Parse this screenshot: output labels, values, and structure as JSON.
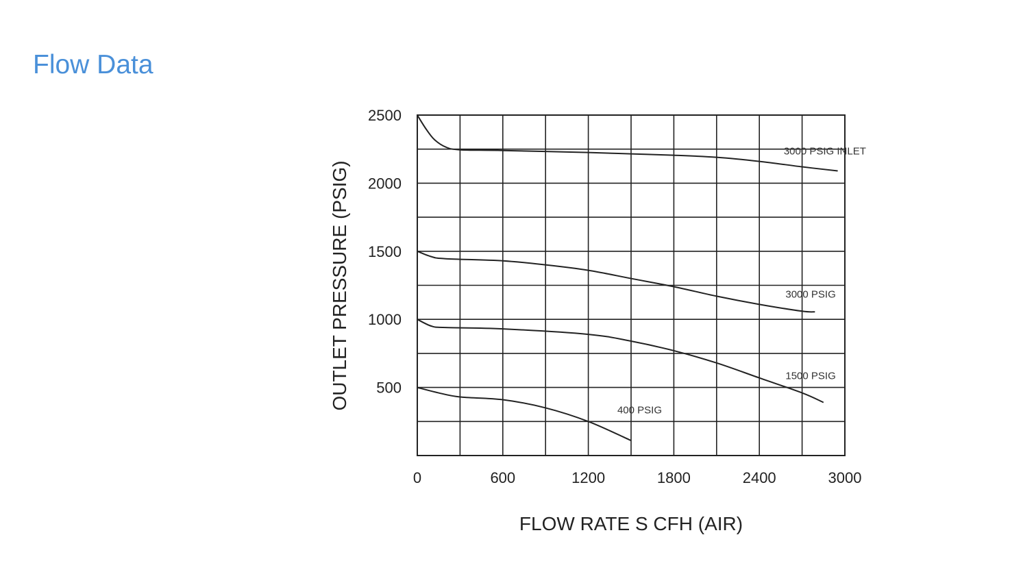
{
  "page": {
    "title": "Flow Data",
    "title_color": "#4a90d9"
  },
  "chart_data": {
    "type": "line",
    "title": "",
    "xlabel": "FLOW  RATE S CFH (AIR)",
    "ylabel": "OUTLET  PRESSURE (PSIG)",
    "xlim": [
      0,
      3000
    ],
    "ylim": [
      0,
      2500
    ],
    "x_gridlines": [
      0,
      300,
      600,
      900,
      1200,
      1500,
      1800,
      2100,
      2400,
      2700,
      3000
    ],
    "y_gridlines": [
      0,
      250,
      500,
      750,
      1000,
      1250,
      1500,
      1750,
      2000,
      2250,
      2500
    ],
    "x_ticks": [
      {
        "value": 0,
        "label": "0"
      },
      {
        "value": 600,
        "label": "600"
      },
      {
        "value": 1200,
        "label": "1200"
      },
      {
        "value": 1800,
        "label": "1800"
      },
      {
        "value": 2400,
        "label": "2400"
      },
      {
        "value": 3000,
        "label": "3000"
      }
    ],
    "y_ticks": [
      {
        "value": 500,
        "label": "500"
      },
      {
        "value": 1000,
        "label": "1000"
      },
      {
        "value": 1500,
        "label": "1500"
      },
      {
        "value": 2000,
        "label": "2000"
      },
      {
        "value": 2500,
        "label": "2500"
      }
    ],
    "grid": true,
    "line_color": "#222222",
    "series": [
      {
        "name": "3000 PSIG INLET",
        "label_at": [
          2860,
          2210
        ],
        "points": [
          [
            0,
            2500
          ],
          [
            60,
            2400
          ],
          [
            120,
            2320
          ],
          [
            200,
            2265
          ],
          [
            300,
            2245
          ],
          [
            600,
            2240
          ],
          [
            1200,
            2225
          ],
          [
            1500,
            2215
          ],
          [
            1800,
            2205
          ],
          [
            2100,
            2190
          ],
          [
            2400,
            2160
          ],
          [
            2700,
            2120
          ],
          [
            2950,
            2090
          ]
        ]
      },
      {
        "name": "3000 PSIG",
        "label_at": [
          2760,
          1160
        ],
        "points": [
          [
            0,
            1500
          ],
          [
            100,
            1460
          ],
          [
            200,
            1445
          ],
          [
            600,
            1430
          ],
          [
            900,
            1400
          ],
          [
            1200,
            1360
          ],
          [
            1500,
            1300
          ],
          [
            1800,
            1240
          ],
          [
            2100,
            1170
          ],
          [
            2400,
            1110
          ],
          [
            2700,
            1060
          ],
          [
            2790,
            1055
          ]
        ]
      },
      {
        "name": "1500 PSIG",
        "label_at": [
          2760,
          560
        ],
        "points": [
          [
            0,
            1000
          ],
          [
            100,
            950
          ],
          [
            200,
            940
          ],
          [
            600,
            930
          ],
          [
            1200,
            890
          ],
          [
            1500,
            840
          ],
          [
            1800,
            770
          ],
          [
            2100,
            680
          ],
          [
            2400,
            570
          ],
          [
            2700,
            460
          ],
          [
            2850,
            390
          ]
        ]
      },
      {
        "name": "400  PSIG",
        "label_at": [
          1560,
          310
        ],
        "points": [
          [
            0,
            500
          ],
          [
            150,
            460
          ],
          [
            300,
            430
          ],
          [
            600,
            410
          ],
          [
            900,
            350
          ],
          [
            1200,
            250
          ],
          [
            1500,
            110
          ]
        ]
      }
    ]
  }
}
